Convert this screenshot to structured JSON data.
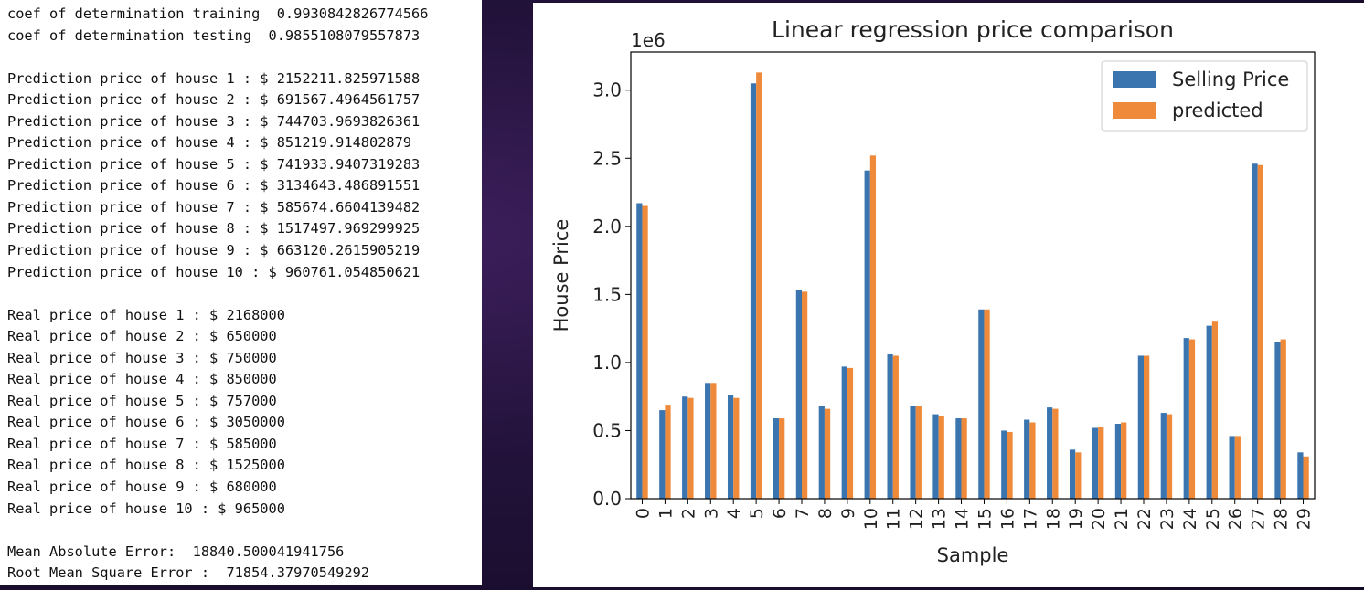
{
  "console": {
    "metrics": [
      "coef of determination training  0.9930842826774566",
      "coef of determination testing  0.9855108079557873"
    ],
    "predictions": [
      "Prediction price of house 1 : $ 2152211.825971588",
      "Prediction price of house 2 : $ 691567.4964561757",
      "Prediction price of house 3 : $ 744703.9693826361",
      "Prediction price of house 4 : $ 851219.914802879",
      "Prediction price of house 5 : $ 741933.9407319283",
      "Prediction price of house 6 : $ 3134643.486891551",
      "Prediction price of house 7 : $ 585674.6604139482",
      "Prediction price of house 8 : $ 1517497.969299925",
      "Prediction price of house 9 : $ 663120.2615905219",
      "Prediction price of house 10 : $ 960761.054850621"
    ],
    "real_prices": [
      "Real price of house 1 : $ 2168000",
      "Real price of house 2 : $ 650000",
      "Real price of house 3 : $ 750000",
      "Real price of house 4 : $ 850000",
      "Real price of house 5 : $ 757000",
      "Real price of house 6 : $ 3050000",
      "Real price of house 7 : $ 585000",
      "Real price of house 8 : $ 1525000",
      "Real price of house 9 : $ 680000",
      "Real price of house 10 : $ 965000"
    ],
    "errors": [
      "Mean Absolute Error:  18840.500041941756",
      "Root Mean Square Error :  71854.37970549292"
    ]
  },
  "chart_data": {
    "type": "bar",
    "title": "Linear regression price comparison",
    "xlabel": "Sample",
    "ylabel": "House Price",
    "scale_label": "1e6",
    "ylim": [
      0,
      3.28
    ],
    "yticks": [
      "0.0",
      "0.5",
      "1.0",
      "1.5",
      "2.0",
      "2.5",
      "3.0"
    ],
    "categories": [
      "0",
      "1",
      "2",
      "3",
      "4",
      "5",
      "6",
      "7",
      "8",
      "9",
      "10",
      "11",
      "12",
      "13",
      "14",
      "15",
      "16",
      "17",
      "18",
      "19",
      "20",
      "21",
      "22",
      "23",
      "24",
      "25",
      "26",
      "27",
      "28",
      "29"
    ],
    "series": [
      {
        "name": "Selling Price",
        "color": "#3a75b0",
        "values": [
          2.17,
          0.65,
          0.75,
          0.85,
          0.76,
          3.05,
          0.59,
          1.53,
          0.68,
          0.97,
          2.41,
          1.06,
          0.68,
          0.62,
          0.59,
          1.39,
          0.5,
          0.58,
          0.67,
          0.36,
          0.52,
          0.55,
          1.05,
          0.63,
          1.18,
          1.27,
          0.46,
          2.46,
          1.15,
          0.34
        ]
      },
      {
        "name": "predicted",
        "color": "#ef8a3a",
        "values": [
          2.15,
          0.69,
          0.74,
          0.85,
          0.74,
          3.13,
          0.59,
          1.52,
          0.66,
          0.96,
          2.52,
          1.05,
          0.68,
          0.61,
          0.59,
          1.39,
          0.49,
          0.56,
          0.66,
          0.34,
          0.53,
          0.56,
          1.05,
          0.62,
          1.17,
          1.3,
          0.46,
          2.45,
          1.17,
          0.31
        ]
      }
    ],
    "legend_position": "top-right",
    "grid": false
  }
}
